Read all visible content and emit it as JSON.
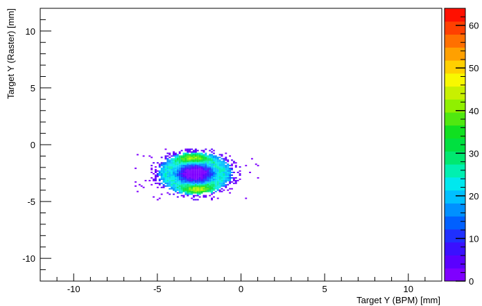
{
  "chart_data": {
    "type": "heatmap",
    "title": "",
    "xlabel": "Target Y (BPM) [mm]",
    "ylabel": "Target Y (Raster) [mm]",
    "xlim": [
      -12,
      12
    ],
    "ylim": [
      -12,
      12
    ],
    "x_ticks": [
      -10,
      -5,
      0,
      5,
      10
    ],
    "y_ticks": [
      -10,
      -5,
      0,
      5,
      10
    ],
    "x_tick_labels": [
      "-10",
      "-5",
      "0",
      "5",
      "10"
    ],
    "y_tick_labels": [
      "-10",
      "-5",
      "0",
      "5",
      "10"
    ],
    "colorbar": {
      "range": [
        0,
        64
      ],
      "ticks": [
        0,
        10,
        20,
        30,
        40,
        50,
        60
      ],
      "tick_labels": [
        "0",
        "10",
        "20",
        "30",
        "40",
        "50",
        "60"
      ],
      "colors": [
        "#7f00ff",
        "#5a00ff",
        "#3a10ff",
        "#1f30ff",
        "#0060ff",
        "#0090ff",
        "#00c0ff",
        "#00e8ee",
        "#00f0b0",
        "#00e870",
        "#00e040",
        "#10e020",
        "#50e810",
        "#90f000",
        "#c8f000",
        "#f8f800",
        "#ffd000",
        "#ffa000",
        "#ff7000",
        "#ff4000",
        "#ff1000"
      ]
    },
    "distribution": {
      "center": [
        -2.8,
        -2.6
      ],
      "core_x_range": [
        -5.5,
        -1.0
      ],
      "core_y_range": [
        -4.5,
        -0.7
      ],
      "sparse_x_range": [
        -7.2,
        1.8
      ],
      "hot_spots": [
        {
          "x": -3.0,
          "y": -1.2,
          "level": 36
        },
        {
          "x": -2.6,
          "y": -4.0,
          "level": 38
        }
      ],
      "central_dip": {
        "x": -2.8,
        "y": -2.6,
        "level": 5
      }
    }
  }
}
